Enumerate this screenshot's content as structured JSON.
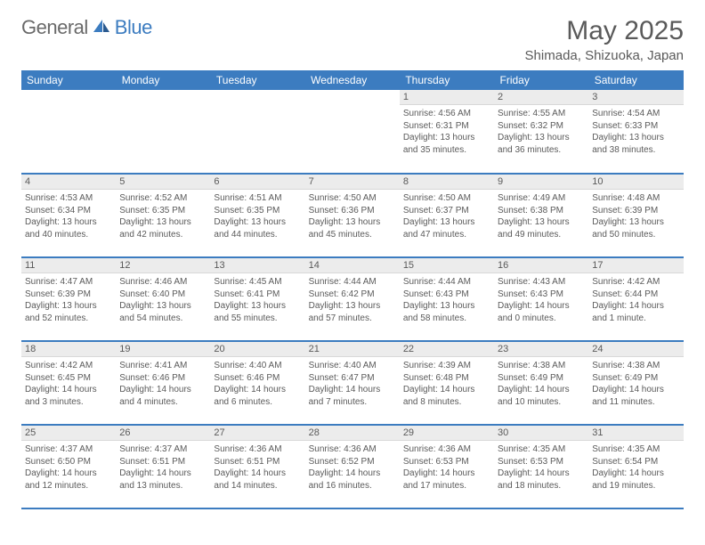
{
  "logo": {
    "text1": "General",
    "text2": "Blue"
  },
  "title": "May 2025",
  "location": "Shimada, Shizuoka, Japan",
  "colors": {
    "header_bg": "#3c7cc0",
    "header_text": "#ffffff",
    "daynum_bg": "#ececec",
    "text": "#5a5a5a",
    "border": "#3c7cc0"
  },
  "day_names": [
    "Sunday",
    "Monday",
    "Tuesday",
    "Wednesday",
    "Thursday",
    "Friday",
    "Saturday"
  ],
  "leading_blanks": 4,
  "days": [
    {
      "n": 1,
      "sunrise": "4:56 AM",
      "sunset": "6:31 PM",
      "daylight": "13 hours and 35 minutes."
    },
    {
      "n": 2,
      "sunrise": "4:55 AM",
      "sunset": "6:32 PM",
      "daylight": "13 hours and 36 minutes."
    },
    {
      "n": 3,
      "sunrise": "4:54 AM",
      "sunset": "6:33 PM",
      "daylight": "13 hours and 38 minutes."
    },
    {
      "n": 4,
      "sunrise": "4:53 AM",
      "sunset": "6:34 PM",
      "daylight": "13 hours and 40 minutes."
    },
    {
      "n": 5,
      "sunrise": "4:52 AM",
      "sunset": "6:35 PM",
      "daylight": "13 hours and 42 minutes."
    },
    {
      "n": 6,
      "sunrise": "4:51 AM",
      "sunset": "6:35 PM",
      "daylight": "13 hours and 44 minutes."
    },
    {
      "n": 7,
      "sunrise": "4:50 AM",
      "sunset": "6:36 PM",
      "daylight": "13 hours and 45 minutes."
    },
    {
      "n": 8,
      "sunrise": "4:50 AM",
      "sunset": "6:37 PM",
      "daylight": "13 hours and 47 minutes."
    },
    {
      "n": 9,
      "sunrise": "4:49 AM",
      "sunset": "6:38 PM",
      "daylight": "13 hours and 49 minutes."
    },
    {
      "n": 10,
      "sunrise": "4:48 AM",
      "sunset": "6:39 PM",
      "daylight": "13 hours and 50 minutes."
    },
    {
      "n": 11,
      "sunrise": "4:47 AM",
      "sunset": "6:39 PM",
      "daylight": "13 hours and 52 minutes."
    },
    {
      "n": 12,
      "sunrise": "4:46 AM",
      "sunset": "6:40 PM",
      "daylight": "13 hours and 54 minutes."
    },
    {
      "n": 13,
      "sunrise": "4:45 AM",
      "sunset": "6:41 PM",
      "daylight": "13 hours and 55 minutes."
    },
    {
      "n": 14,
      "sunrise": "4:44 AM",
      "sunset": "6:42 PM",
      "daylight": "13 hours and 57 minutes."
    },
    {
      "n": 15,
      "sunrise": "4:44 AM",
      "sunset": "6:43 PM",
      "daylight": "13 hours and 58 minutes."
    },
    {
      "n": 16,
      "sunrise": "4:43 AM",
      "sunset": "6:43 PM",
      "daylight": "14 hours and 0 minutes."
    },
    {
      "n": 17,
      "sunrise": "4:42 AM",
      "sunset": "6:44 PM",
      "daylight": "14 hours and 1 minute."
    },
    {
      "n": 18,
      "sunrise": "4:42 AM",
      "sunset": "6:45 PM",
      "daylight": "14 hours and 3 minutes."
    },
    {
      "n": 19,
      "sunrise": "4:41 AM",
      "sunset": "6:46 PM",
      "daylight": "14 hours and 4 minutes."
    },
    {
      "n": 20,
      "sunrise": "4:40 AM",
      "sunset": "6:46 PM",
      "daylight": "14 hours and 6 minutes."
    },
    {
      "n": 21,
      "sunrise": "4:40 AM",
      "sunset": "6:47 PM",
      "daylight": "14 hours and 7 minutes."
    },
    {
      "n": 22,
      "sunrise": "4:39 AM",
      "sunset": "6:48 PM",
      "daylight": "14 hours and 8 minutes."
    },
    {
      "n": 23,
      "sunrise": "4:38 AM",
      "sunset": "6:49 PM",
      "daylight": "14 hours and 10 minutes."
    },
    {
      "n": 24,
      "sunrise": "4:38 AM",
      "sunset": "6:49 PM",
      "daylight": "14 hours and 11 minutes."
    },
    {
      "n": 25,
      "sunrise": "4:37 AM",
      "sunset": "6:50 PM",
      "daylight": "14 hours and 12 minutes."
    },
    {
      "n": 26,
      "sunrise": "4:37 AM",
      "sunset": "6:51 PM",
      "daylight": "14 hours and 13 minutes."
    },
    {
      "n": 27,
      "sunrise": "4:36 AM",
      "sunset": "6:51 PM",
      "daylight": "14 hours and 14 minutes."
    },
    {
      "n": 28,
      "sunrise": "4:36 AM",
      "sunset": "6:52 PM",
      "daylight": "14 hours and 16 minutes."
    },
    {
      "n": 29,
      "sunrise": "4:36 AM",
      "sunset": "6:53 PM",
      "daylight": "14 hours and 17 minutes."
    },
    {
      "n": 30,
      "sunrise": "4:35 AM",
      "sunset": "6:53 PM",
      "daylight": "14 hours and 18 minutes."
    },
    {
      "n": 31,
      "sunrise": "4:35 AM",
      "sunset": "6:54 PM",
      "daylight": "14 hours and 19 minutes."
    }
  ],
  "labels": {
    "sunrise": "Sunrise:",
    "sunset": "Sunset:",
    "daylight": "Daylight:"
  }
}
